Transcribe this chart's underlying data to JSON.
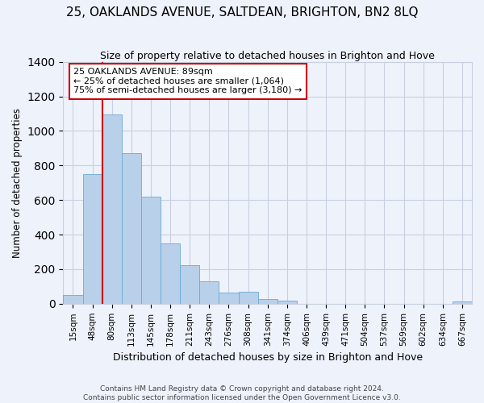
{
  "title": "25, OAKLANDS AVENUE, SALTDEAN, BRIGHTON, BN2 8LQ",
  "subtitle": "Size of property relative to detached houses in Brighton and Hove",
  "xlabel": "Distribution of detached houses by size in Brighton and Hove",
  "ylabel": "Number of detached properties",
  "footer1": "Contains HM Land Registry data © Crown copyright and database right 2024.",
  "footer2": "Contains public sector information licensed under the Open Government Licence v3.0.",
  "bar_labels": [
    "15sqm",
    "48sqm",
    "80sqm",
    "113sqm",
    "145sqm",
    "178sqm",
    "211sqm",
    "243sqm",
    "276sqm",
    "308sqm",
    "341sqm",
    "374sqm",
    "406sqm",
    "439sqm",
    "471sqm",
    "504sqm",
    "537sqm",
    "569sqm",
    "602sqm",
    "634sqm",
    "667sqm"
  ],
  "bar_heights": [
    50,
    750,
    1095,
    870,
    620,
    350,
    225,
    130,
    65,
    70,
    25,
    20,
    0,
    0,
    0,
    0,
    0,
    0,
    0,
    0,
    15
  ],
  "annotation_text1": "25 OAKLANDS AVENUE: 89sqm",
  "annotation_text2": "← 25% of detached houses are smaller (1,064)",
  "annotation_text3": "75% of semi-detached houses are larger (3,180) →",
  "bar_color": "#b8d0ea",
  "bar_edge_color": "#6aaad4",
  "vline_color": "#cc0000",
  "vline_x": 1.5,
  "background_color": "#eef2fb",
  "grid_color": "#c8d0e0",
  "ylim": [
    0,
    1400
  ],
  "yticks": [
    0,
    200,
    400,
    600,
    800,
    1000,
    1200,
    1400
  ]
}
